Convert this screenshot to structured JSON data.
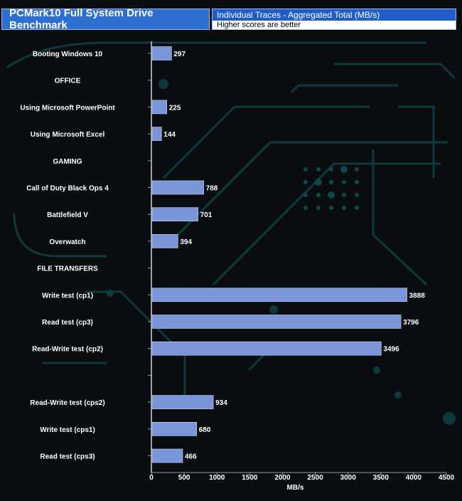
{
  "header": {
    "title": "PCMark10 Full System Drive Benchmark",
    "subtitle": "Individual Traces - Aggregated Total (MB/s)",
    "note": "Higher scores are better"
  },
  "colors": {
    "bar": "#7b96d8",
    "background": "#0a0d0f",
    "circuit": "#0e3a3f",
    "title_bg": "#2d6fd0"
  },
  "chart_data": {
    "type": "bar",
    "orientation": "horizontal",
    "title": "PCMark10 Full System Drive Benchmark",
    "subtitle": "Individual Traces - Aggregated Total (MB/s)",
    "xlabel": "MB/s",
    "ylabel": "",
    "xlim": [
      0,
      4500
    ],
    "xticks": [
      "0",
      "500",
      "1000",
      "1500",
      "2000",
      "2500",
      "3000",
      "3500",
      "4000",
      "4500"
    ],
    "categories": [
      "Booting Windows 10",
      "OFFICE",
      "Using Microsoft PowerPoint",
      "Using Microsoft Excel",
      "GAMING",
      "Call of Duty Black Ops 4",
      "Battlefield V",
      "Overwatch",
      "FILE TRANSFERS",
      "Write test (cp1)",
      "Read test (cp3)",
      "Read-Write test (cp2)",
      "",
      "Read-Write test (cps2)",
      "Write test (cps1)",
      "Read test (cps3)"
    ],
    "values": [
      297,
      null,
      225,
      144,
      null,
      788,
      701,
      394,
      null,
      3888,
      3796,
      3496,
      null,
      934,
      680,
      466
    ]
  }
}
